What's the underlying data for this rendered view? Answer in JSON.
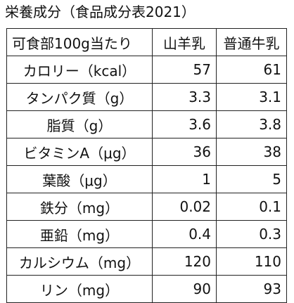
{
  "title": "栄養成分（食品成分表2021）",
  "table": {
    "header": {
      "label": "可食部100g当たり",
      "goat": "山羊乳",
      "cow": "普通牛乳"
    },
    "rows": [
      {
        "label": "カロリー（kcal）",
        "goat": "57",
        "cow": "61"
      },
      {
        "label": "タンパク質（g）",
        "goat": "3.3",
        "cow": "3.1"
      },
      {
        "label": "脂質（g）",
        "goat": "3.6",
        "cow": "3.8"
      },
      {
        "label": "ビタミンA（μg）",
        "goat": "36",
        "cow": "38"
      },
      {
        "label": "葉酸（μg）",
        "goat": "1",
        "cow": "5"
      },
      {
        "label": "鉄分（mg）",
        "goat": "0.02",
        "cow": "0.1"
      },
      {
        "label": "亜鉛（mg）",
        "goat": "0.4",
        "cow": "0.3"
      },
      {
        "label": "カルシウム（mg）",
        "goat": "120",
        "cow": "110"
      },
      {
        "label": "リン（mg）",
        "goat": "90",
        "cow": "93"
      }
    ]
  }
}
